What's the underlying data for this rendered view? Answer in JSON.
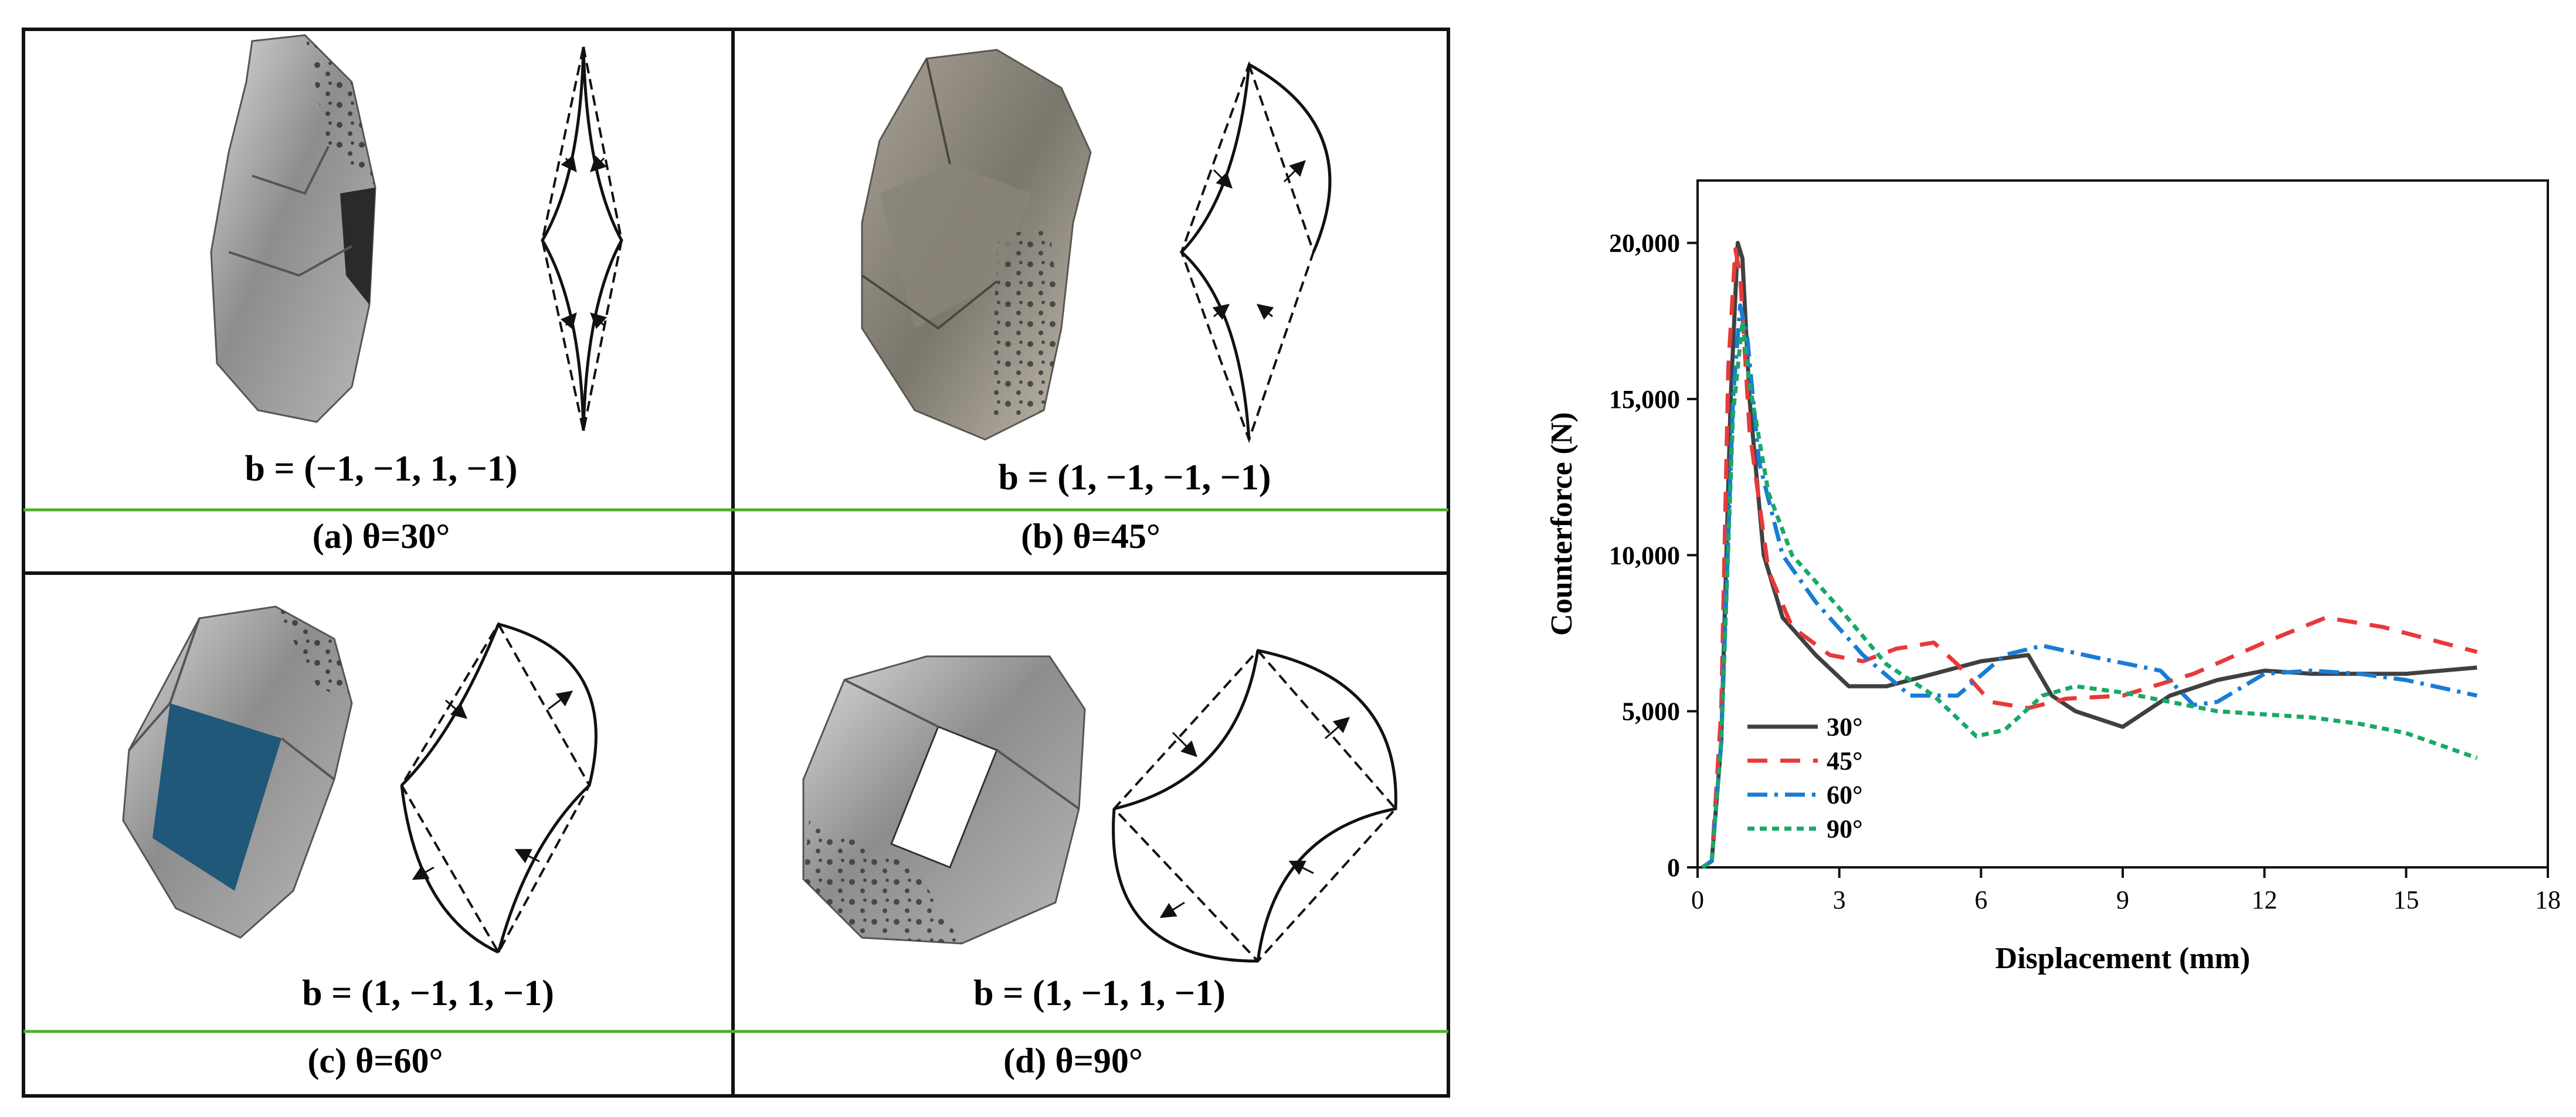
{
  "panels": [
    {
      "id": "a",
      "b_text": "b = (−1, −1, 1, −1)",
      "caption": "(a)  θ=30°"
    },
    {
      "id": "b",
      "b_text": "b = (1, −1, −1, −1)",
      "caption": "(b)  θ=45°"
    },
    {
      "id": "c",
      "b_text": "b = (1, −1, 1, −1)",
      "caption": "(c)  θ=60°"
    },
    {
      "id": "d",
      "b_text": "b = (1, −1, 1, −1)",
      "caption": "(d)  θ=90°"
    }
  ],
  "chart_data": {
    "type": "line",
    "title": "",
    "xlabel": "Displacement (mm)",
    "ylabel": "Counterforce (N)",
    "xlim": [
      0,
      18
    ],
    "ylim": [
      0,
      22000
    ],
    "xticks": [
      0,
      3,
      6,
      9,
      12,
      15,
      18
    ],
    "xtick_labels": [
      "0",
      "3",
      "6",
      "9",
      "12",
      "15",
      "18"
    ],
    "yticks": [
      0,
      5000,
      10000,
      15000,
      20000
    ],
    "ytick_labels": [
      "0",
      "5,000",
      "10,000",
      "15,000",
      "20,000"
    ],
    "grid": false,
    "legend": "bottom-left",
    "series": [
      {
        "name": "30°",
        "color": "#404040",
        "dash": "solid",
        "points": [
          [
            0.1,
            0
          ],
          [
            0.3,
            200
          ],
          [
            0.5,
            4000
          ],
          [
            0.7,
            15000
          ],
          [
            0.85,
            20000
          ],
          [
            0.95,
            19500
          ],
          [
            1.1,
            15000
          ],
          [
            1.4,
            10000
          ],
          [
            1.8,
            8000
          ],
          [
            2.5,
            6800
          ],
          [
            3.2,
            5800
          ],
          [
            4,
            5800
          ],
          [
            5,
            6200
          ],
          [
            6,
            6600
          ],
          [
            7,
            6800
          ],
          [
            7.5,
            5500
          ],
          [
            8,
            5000
          ],
          [
            9,
            4500
          ],
          [
            10,
            5500
          ],
          [
            11,
            6000
          ],
          [
            12,
            6300
          ],
          [
            13,
            6200
          ],
          [
            14,
            6200
          ],
          [
            15,
            6200
          ],
          [
            16.5,
            6400
          ]
        ]
      },
      {
        "name": "45°",
        "color": "#e8393a",
        "dash": "34,22",
        "points": [
          [
            0.1,
            0
          ],
          [
            0.3,
            200
          ],
          [
            0.5,
            5000
          ],
          [
            0.65,
            16000
          ],
          [
            0.8,
            19800
          ],
          [
            0.9,
            19000
          ],
          [
            1.1,
            14000
          ],
          [
            1.5,
            9500
          ],
          [
            2,
            7700
          ],
          [
            2.8,
            6800
          ],
          [
            3.5,
            6600
          ],
          [
            4.2,
            7000
          ],
          [
            5,
            7200
          ],
          [
            5.5,
            6500
          ],
          [
            6.2,
            5300
          ],
          [
            7,
            5100
          ],
          [
            7.8,
            5400
          ],
          [
            9,
            5500
          ],
          [
            10.5,
            6200
          ],
          [
            12,
            7200
          ],
          [
            13.3,
            8000
          ],
          [
            14.5,
            7700
          ],
          [
            16.5,
            6900
          ]
        ]
      },
      {
        "name": "60°",
        "color": "#1a7bd6",
        "dash": "34,12,6,12",
        "points": [
          [
            0.1,
            0
          ],
          [
            0.3,
            200
          ],
          [
            0.5,
            4000
          ],
          [
            0.75,
            15000
          ],
          [
            0.9,
            18000
          ],
          [
            1.05,
            17000
          ],
          [
            1.3,
            13000
          ],
          [
            1.8,
            10000
          ],
          [
            2.5,
            8500
          ],
          [
            3.5,
            6800
          ],
          [
            4.5,
            5500
          ],
          [
            5.5,
            5500
          ],
          [
            6.5,
            6800
          ],
          [
            7.3,
            7100
          ],
          [
            8.5,
            6700
          ],
          [
            9.8,
            6300
          ],
          [
            10.5,
            5200
          ],
          [
            11,
            5300
          ],
          [
            12,
            6200
          ],
          [
            13,
            6300
          ],
          [
            14,
            6200
          ],
          [
            15,
            6000
          ],
          [
            16.5,
            5500
          ]
        ]
      },
      {
        "name": "90°",
        "color": "#18a967",
        "dash": "12,9",
        "points": [
          [
            0.1,
            0
          ],
          [
            0.3,
            200
          ],
          [
            0.5,
            4000
          ],
          [
            0.75,
            14500
          ],
          [
            0.95,
            17500
          ],
          [
            1.1,
            15500
          ],
          [
            1.5,
            12000
          ],
          [
            2,
            10000
          ],
          [
            3,
            8300
          ],
          [
            4,
            6500
          ],
          [
            5,
            5500
          ],
          [
            5.9,
            4200
          ],
          [
            6.5,
            4400
          ],
          [
            7.3,
            5500
          ],
          [
            8,
            5800
          ],
          [
            9,
            5600
          ],
          [
            10,
            5300
          ],
          [
            11,
            5000
          ],
          [
            12,
            4900
          ],
          [
            13,
            4800
          ],
          [
            14,
            4600
          ],
          [
            15,
            4300
          ],
          [
            16.5,
            3500
          ]
        ]
      }
    ]
  }
}
